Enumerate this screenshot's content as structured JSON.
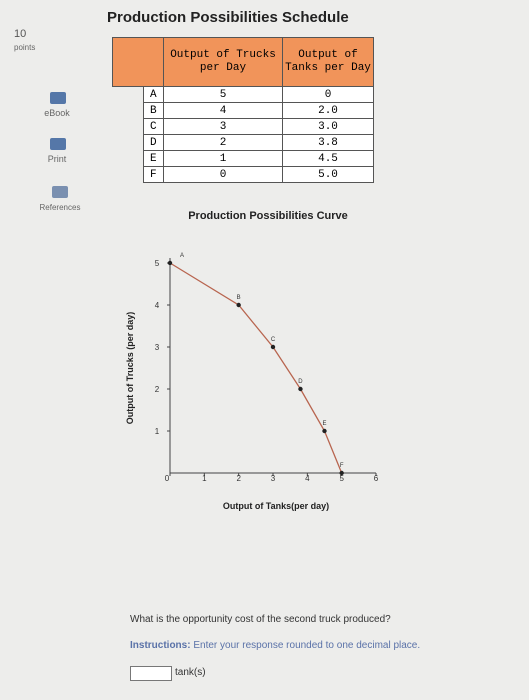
{
  "sidebar": {
    "points_value": "10",
    "points_label": "points",
    "links": [
      "eBook",
      "Print",
      "References"
    ]
  },
  "table": {
    "title": "Production Possibilities Schedule",
    "header": [
      "",
      "Output of Trucks per Day",
      "Output of Tanks per Day"
    ],
    "rows": [
      [
        "A",
        "5",
        "0"
      ],
      [
        "B",
        "4",
        "2.0"
      ],
      [
        "C",
        "3",
        "3.0"
      ],
      [
        "D",
        "2",
        "3.8"
      ],
      [
        "E",
        "1",
        "4.5"
      ],
      [
        "F",
        "0",
        "5.0"
      ]
    ]
  },
  "chart_data": {
    "type": "line",
    "title": "Production Possibilities Curve",
    "x_label": "Output of Tanks(per day)",
    "y_label": "Output of Trucks (per day)",
    "x": [
      0,
      2,
      3,
      3.8,
      4.5,
      5
    ],
    "values": [
      5,
      4,
      3,
      2,
      1,
      0
    ],
    "point_labels": [
      "A",
      "B",
      "C",
      "D",
      "E",
      "F"
    ],
    "color": "#b8654f",
    "xlim": [
      0,
      6
    ],
    "ylim": [
      0,
      5
    ],
    "xticks": [
      0,
      1,
      2,
      3,
      4,
      5,
      6
    ],
    "yticks": [
      1,
      2,
      3,
      4,
      5
    ]
  },
  "question": {
    "text": "What is the opportunity cost of the second truck produced?",
    "instructions_label": "Instructions:",
    "instructions": "Enter your response rounded to one decimal place.",
    "unit": "tank(s)"
  }
}
